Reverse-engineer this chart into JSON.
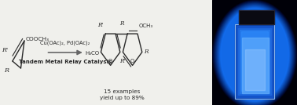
{
  "bg_color": "#f0f0ec",
  "reaction_text_color": "#2a2a2a",
  "arrow_color": "#666666",
  "bold_text": "Tandem Metal Relay Catalysis",
  "reagents_text": "Cu(OAc)₂, Pd(OAc)₂",
  "examples_text": "15 examples\nyield up to 89%",
  "fig_width": 3.78,
  "fig_height": 1.34,
  "dpi": 100
}
